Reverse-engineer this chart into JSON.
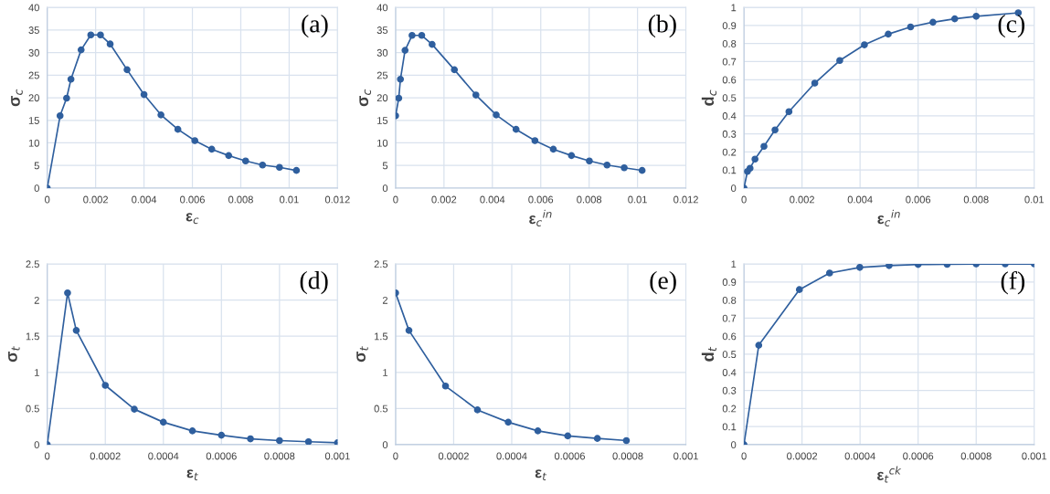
{
  "chart_data": [
    {
      "type": "line",
      "xlabel": "ε$_{c}$",
      "ylabel": "σ$_{c}$",
      "annotations": [
        "(a)"
      ],
      "marker": "circle",
      "grid": true,
      "xlim": [
        0,
        0.012
      ],
      "xticks": [
        0,
        0.002,
        0.004,
        0.006,
        0.008,
        0.01,
        0.012
      ],
      "ylim": [
        0,
        40
      ],
      "yticks": [
        0,
        5,
        10,
        15,
        20,
        25,
        30,
        35,
        40
      ],
      "series": [
        {
          "color": "#2f5f9e",
          "x": [
            0,
            0.00053,
            0.0008,
            0.00098,
            0.0014,
            0.0018,
            0.0022,
            0.0026,
            0.0033,
            0.004,
            0.0047,
            0.0054,
            0.0061,
            0.0068,
            0.0075,
            0.0082,
            0.0089,
            0.0096,
            0.0103
          ],
          "values": [
            0,
            16,
            19.9,
            24.1,
            30.6,
            33.9,
            33.9,
            31.9,
            26.2,
            20.7,
            16.2,
            13.0,
            10.5,
            8.6,
            7.2,
            6.0,
            5.1,
            4.6,
            3.9
          ]
        }
      ]
    },
    {
      "type": "line",
      "xlabel": "ε$_{c}$$^{in}$",
      "ylabel": "σ$_{c}$",
      "annotations": [
        "(b)"
      ],
      "marker": "circle",
      "grid": true,
      "xlim": [
        0,
        0.012
      ],
      "xticks": [
        0,
        0.002,
        0.004,
        0.006,
        0.008,
        0.01,
        0.012
      ],
      "ylim": [
        0,
        40
      ],
      "yticks": [
        0,
        5,
        10,
        15,
        20,
        25,
        30,
        35,
        40
      ],
      "series": [
        {
          "color": "#2f5f9e",
          "x": [
            0,
            0.00013,
            0.0002,
            0.00039,
            0.00068,
            0.00108,
            0.00151,
            0.00243,
            0.00332,
            0.00416,
            0.00498,
            0.00576,
            0.00652,
            0.00727,
            0.00801,
            0.00874,
            0.00945,
            0.01019
          ],
          "values": [
            16,
            19.9,
            24.1,
            30.5,
            33.8,
            33.8,
            31.8,
            26.2,
            20.6,
            16.2,
            13.0,
            10.5,
            8.6,
            7.2,
            6.0,
            5.1,
            4.5,
            3.9
          ]
        }
      ]
    },
    {
      "type": "line",
      "xlabel": "ε$_{c}$$^{in}$",
      "ylabel": "d$_{c}$",
      "annotations": [
        "(c)"
      ],
      "marker": "circle",
      "grid": true,
      "xlim": [
        0,
        0.01
      ],
      "xticks": [
        0,
        0.002,
        0.004,
        0.006,
        0.008,
        0.01
      ],
      "ylim": [
        0,
        1
      ],
      "yticks": [
        0,
        0.1,
        0.2,
        0.3,
        0.4,
        0.5,
        0.6,
        0.7,
        0.8,
        0.9,
        1
      ],
      "series": [
        {
          "color": "#2f5f9e",
          "x": [
            0,
            0.00012,
            0.00021,
            0.00038,
            0.00069,
            0.00107,
            0.00155,
            0.00244,
            0.0033,
            0.00415,
            0.00497,
            0.00574,
            0.00651,
            0.00726,
            0.008,
            0.00945
          ],
          "values": [
            0,
            0.092,
            0.11,
            0.16,
            0.231,
            0.322,
            0.423,
            0.581,
            0.706,
            0.793,
            0.852,
            0.892,
            0.918,
            0.937,
            0.951,
            0.97
          ]
        }
      ]
    },
    {
      "type": "line",
      "xlabel": "ε$_{t}$",
      "ylabel": "σ$_{t}$",
      "annotations": [
        "(d)"
      ],
      "marker": "circle",
      "grid": true,
      "xlim": [
        0,
        0.001
      ],
      "xticks": [
        0,
        0.0002,
        0.0004,
        0.0006,
        0.0008,
        0.001
      ],
      "ylim": [
        0,
        2.5
      ],
      "yticks": [
        0,
        0.5,
        1,
        1.5,
        2,
        2.5
      ],
      "series": [
        {
          "color": "#2f5f9e",
          "x": [
            0,
            7e-05,
            0.0001,
            0.0002,
            0.0003,
            0.0004,
            0.0005,
            0.0006,
            0.0007,
            0.0008,
            0.0009,
            0.001
          ],
          "values": [
            0,
            2.1,
            1.58,
            0.82,
            0.49,
            0.31,
            0.19,
            0.13,
            0.08,
            0.056,
            0.04,
            0.026
          ]
        }
      ]
    },
    {
      "type": "line",
      "xlabel": "ε$_{t}$",
      "ylabel": "σ$_{t}$",
      "annotations": [
        "(e)"
      ],
      "marker": "circle",
      "grid": true,
      "xlim": [
        0,
        0.001
      ],
      "xticks": [
        0,
        0.0002,
        0.0004,
        0.0006,
        0.0008,
        0.001
      ],
      "ylim": [
        0,
        2.5
      ],
      "yticks": [
        0,
        0.5,
        1,
        1.5,
        2,
        2.5
      ],
      "series": [
        {
          "color": "#2f5f9e",
          "x": [
            0,
            4.6e-05,
            0.000172,
            0.000282,
            0.000388,
            0.00049,
            0.000593,
            0.000695,
            0.000795
          ],
          "values": [
            2.1,
            1.58,
            0.81,
            0.48,
            0.31,
            0.19,
            0.12,
            0.085,
            0.056
          ]
        }
      ]
    },
    {
      "type": "line",
      "xlabel": "ε$_{t}$$^{ck}$",
      "ylabel": "d$_{t}$",
      "annotations": [
        "(f)"
      ],
      "marker": "circle",
      "grid": true,
      "xlim": [
        0,
        0.001
      ],
      "xticks": [
        0,
        0.0002,
        0.0004,
        0.0006,
        0.0008,
        0.001
      ],
      "ylim": [
        0,
        1
      ],
      "yticks": [
        0,
        0.1,
        0.2,
        0.3,
        0.4,
        0.5,
        0.6,
        0.7,
        0.8,
        0.9,
        1
      ],
      "series": [
        {
          "color": "#2f5f9e",
          "x": [
            0,
            5.1e-05,
            0.000191,
            0.000295,
            0.000399,
            0.0005,
            0.0006,
            0.0007,
            0.0008,
            0.0009,
            0.001
          ],
          "values": [
            0,
            0.55,
            0.858,
            0.95,
            0.981,
            0.991,
            0.997,
            0.998,
            1.0,
            1.0,
            1.0
          ]
        }
      ]
    }
  ]
}
